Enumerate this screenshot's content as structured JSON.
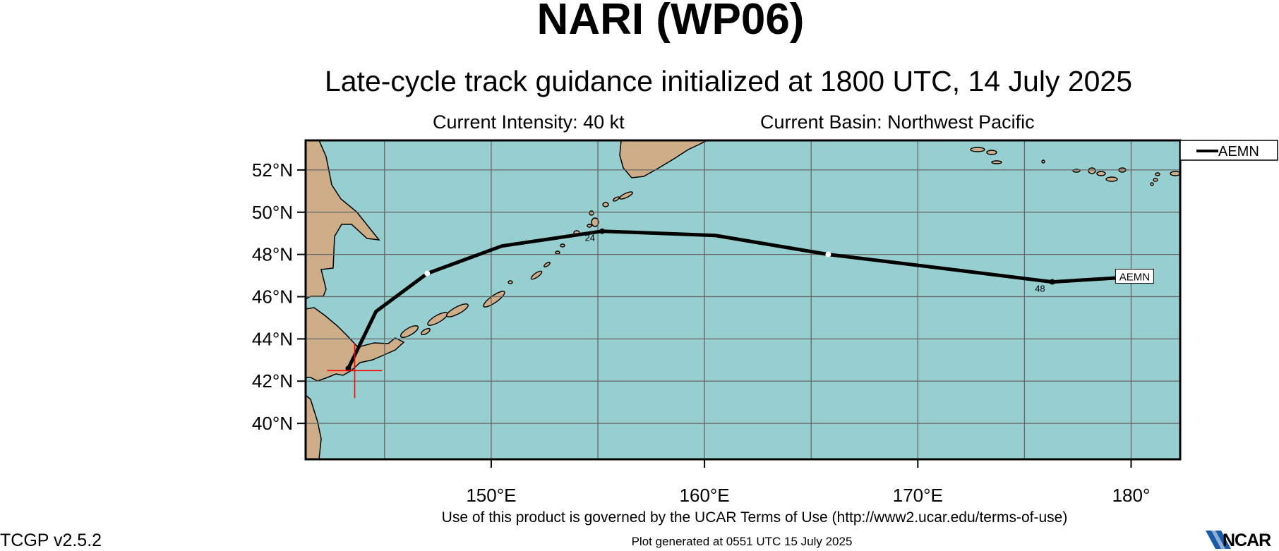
{
  "header": {
    "title": "NARI (WP06)",
    "subtitle": "Late-cycle track guidance initialized at 1800 UTC, 14 July 2025",
    "intensity": "Current Intensity: 40 kt",
    "basin": "Current Basin: Northwest Pacific"
  },
  "footer": {
    "terms": "Use of this product is governed by the UCAR Terms of Use (http://www2.ucar.edu/terms-of-use)",
    "generated": "Plot generated at 0551 UTC   15 July 2025",
    "version": "TCGP v2.5.2",
    "logo": "NCAR"
  },
  "map": {
    "lon_range": [
      141.3,
      182.3
    ],
    "lat_range": [
      38.3,
      53.4
    ],
    "lat_ticks": [
      {
        "value": 40,
        "label": "40°N"
      },
      {
        "value": 42,
        "label": "42°N"
      },
      {
        "value": 44,
        "label": "44°N"
      },
      {
        "value": 46,
        "label": "46°N"
      },
      {
        "value": 48,
        "label": "48°N"
      },
      {
        "value": 50,
        "label": "50°N"
      },
      {
        "value": 52,
        "label": "52°N"
      }
    ],
    "lon_ticks": [
      {
        "value": 150,
        "label": "150°E"
      },
      {
        "value": 160,
        "label": "160°E"
      },
      {
        "value": 170,
        "label": "170°E"
      },
      {
        "value": 180,
        "label": "180°"
      }
    ],
    "grid_lons": [
      145,
      150,
      155,
      160,
      165,
      170,
      175,
      180
    ],
    "grid_lats": [
      40,
      42,
      44,
      46,
      48,
      50,
      52
    ],
    "colors": {
      "ocean": "#97cecf",
      "land": "#ceae88",
      "grid": "#666666",
      "track": "#000000",
      "current_position": "#ff0000"
    },
    "current_position": {
      "lon": 143.6,
      "lat": 42.5
    },
    "legend": {
      "entries": [
        "AEMN"
      ],
      "placement": "outside-top-right"
    },
    "tracks": [
      {
        "name": "AEMN",
        "end_label": "AEMN",
        "points": [
          {
            "lon": 143.3,
            "lat": 42.6
          },
          {
            "lon": 144.6,
            "lat": 45.3
          },
          {
            "lon": 147.0,
            "lat": 47.1
          },
          {
            "lon": 150.5,
            "lat": 48.4
          },
          {
            "lon": 155.2,
            "lat": 49.1
          },
          {
            "lon": 160.5,
            "lat": 48.9
          },
          {
            "lon": 165.8,
            "lat": 48.0
          },
          {
            "lon": 171.5,
            "lat": 47.3
          },
          {
            "lon": 176.3,
            "lat": 46.7
          },
          {
            "lon": 179.5,
            "lat": 46.9
          }
        ],
        "markers": [
          {
            "lon": 143.3,
            "lat": 42.6,
            "style": "black"
          },
          {
            "lon": 147.0,
            "lat": 47.1,
            "style": "white"
          },
          {
            "lon": 155.2,
            "lat": 49.1,
            "style": "black",
            "label": "24"
          },
          {
            "lon": 165.8,
            "lat": 48.0,
            "style": "white"
          },
          {
            "lon": 176.3,
            "lat": 46.7,
            "style": "black",
            "label": "48"
          }
        ]
      }
    ]
  }
}
